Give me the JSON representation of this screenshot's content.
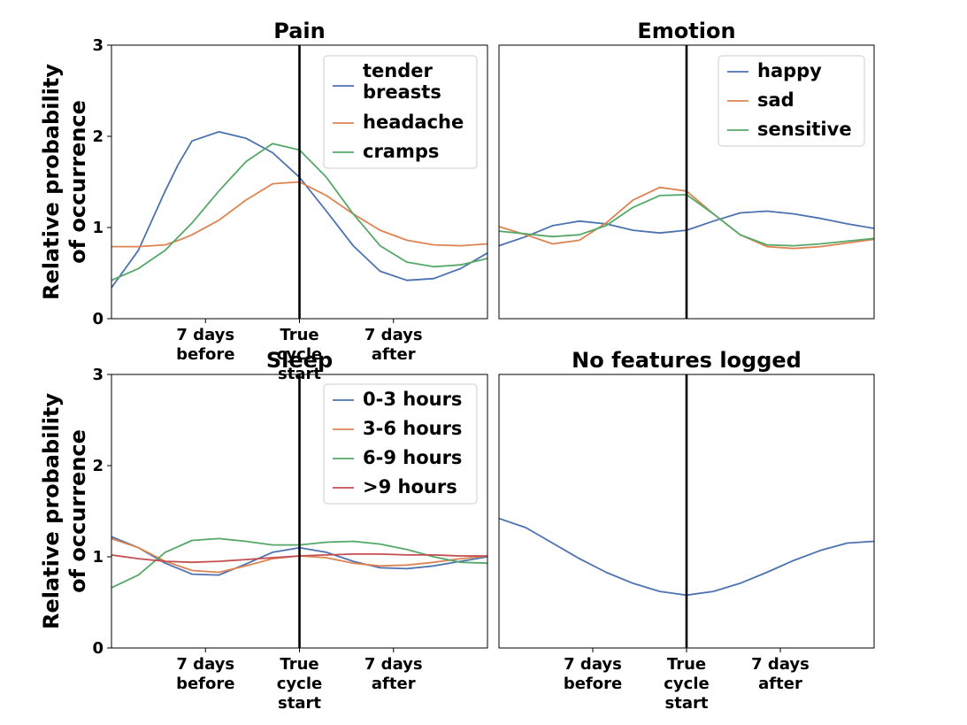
{
  "chart_data": [
    {
      "type": "line",
      "title": "Pain",
      "ylabel": "Relative probability of occurrence",
      "ylim": [
        0,
        3
      ],
      "yticks": [
        0,
        1,
        2,
        3
      ],
      "xlim": [
        -14,
        14
      ],
      "xticks": [
        {
          "x": -7,
          "label": "7 days before"
        },
        {
          "x": 0,
          "label": "True cycle start"
        },
        {
          "x": 7,
          "label": "7 days after"
        }
      ],
      "vline_x": 0,
      "legend": "top-right",
      "x": [
        -14,
        -12,
        -10,
        -9,
        -8,
        -6,
        -4,
        -2,
        0,
        2,
        4,
        6,
        8,
        10,
        12,
        14
      ],
      "series": [
        {
          "name": "tender breasts",
          "color": "#4c72b0",
          "values": [
            0.34,
            0.75,
            1.4,
            1.7,
            1.95,
            2.05,
            1.98,
            1.82,
            1.55,
            1.18,
            0.8,
            0.52,
            0.42,
            0.44,
            0.55,
            0.72
          ]
        },
        {
          "name": "headache",
          "color": "#dd8452",
          "values": [
            0.79,
            0.79,
            0.81,
            0.86,
            0.92,
            1.08,
            1.3,
            1.48,
            1.5,
            1.35,
            1.15,
            0.97,
            0.86,
            0.81,
            0.8,
            0.82
          ]
        },
        {
          "name": "cramps",
          "color": "#55a868",
          "values": [
            0.42,
            0.55,
            0.75,
            0.9,
            1.05,
            1.4,
            1.72,
            1.92,
            1.85,
            1.55,
            1.15,
            0.8,
            0.62,
            0.57,
            0.59,
            0.66
          ]
        }
      ]
    },
    {
      "type": "line",
      "title": "Emotion",
      "ylabel": "",
      "ylim": [
        0,
        3
      ],
      "xlim": [
        -14,
        14
      ],
      "xticks": [],
      "vline_x": 0,
      "legend": "top-right",
      "x": [
        -14,
        -12,
        -10,
        -8,
        -6,
        -4,
        -2,
        0,
        2,
        4,
        6,
        8,
        10,
        12,
        14
      ],
      "series": [
        {
          "name": "happy",
          "color": "#4c72b0",
          "values": [
            0.8,
            0.9,
            1.02,
            1.07,
            1.04,
            0.97,
            0.94,
            0.97,
            1.07,
            1.16,
            1.18,
            1.15,
            1.1,
            1.04,
            0.99
          ]
        },
        {
          "name": "sad",
          "color": "#dd8452",
          "values": [
            1.01,
            0.92,
            0.82,
            0.86,
            1.05,
            1.3,
            1.44,
            1.4,
            1.15,
            0.92,
            0.79,
            0.77,
            0.79,
            0.83,
            0.87
          ]
        },
        {
          "name": "sensitive",
          "color": "#55a868",
          "values": [
            0.96,
            0.93,
            0.9,
            0.92,
            1.02,
            1.22,
            1.35,
            1.36,
            1.15,
            0.92,
            0.81,
            0.8,
            0.82,
            0.85,
            0.88
          ]
        }
      ]
    },
    {
      "type": "line",
      "title": "Sleep",
      "ylabel": "Relative probability of occurrence",
      "ylim": [
        0,
        3
      ],
      "yticks": [
        0,
        1,
        2,
        3
      ],
      "xlim": [
        -14,
        14
      ],
      "xticks": [
        {
          "x": -7,
          "label": "7 days before"
        },
        {
          "x": 0,
          "label": "True cycle start"
        },
        {
          "x": 7,
          "label": "7 days after"
        }
      ],
      "vline_x": 0,
      "legend": "top-right",
      "x": [
        -14,
        -12,
        -10,
        -8,
        -6,
        -4,
        -2,
        0,
        2,
        4,
        6,
        8,
        10,
        12,
        14
      ],
      "series": [
        {
          "name": "0-3 hours",
          "color": "#4c72b0",
          "values": [
            1.22,
            1.1,
            0.93,
            0.81,
            0.8,
            0.92,
            1.05,
            1.1,
            1.05,
            0.95,
            0.88,
            0.87,
            0.9,
            0.95,
            1.0
          ]
        },
        {
          "name": "3-6 hours",
          "color": "#dd8452",
          "values": [
            1.2,
            1.1,
            0.95,
            0.85,
            0.83,
            0.9,
            0.98,
            1.01,
            0.99,
            0.93,
            0.9,
            0.91,
            0.94,
            0.98,
            1.01
          ]
        },
        {
          "name": "6-9 hours",
          "color": "#55a868",
          "values": [
            0.66,
            0.8,
            1.05,
            1.18,
            1.2,
            1.17,
            1.13,
            1.13,
            1.16,
            1.17,
            1.14,
            1.08,
            1.0,
            0.94,
            0.93
          ]
        },
        {
          "name": ">9 hours",
          "color": "#c44e52",
          "values": [
            1.02,
            0.98,
            0.95,
            0.94,
            0.95,
            0.97,
            0.99,
            1.01,
            1.02,
            1.03,
            1.03,
            1.02,
            1.02,
            1.01,
            1.01
          ]
        }
      ]
    },
    {
      "type": "line",
      "title": "No features logged",
      "ylabel": "",
      "ylim": [
        0,
        3
      ],
      "xlim": [
        -14,
        14
      ],
      "xticks": [
        {
          "x": -7,
          "label": "7 days before"
        },
        {
          "x": 0,
          "label": "True cycle start"
        },
        {
          "x": 7,
          "label": "7 days after"
        }
      ],
      "vline_x": 0,
      "legend": "none",
      "x": [
        -14,
        -12,
        -10,
        -8,
        -6,
        -4,
        -2,
        0,
        2,
        4,
        6,
        8,
        10,
        12,
        14
      ],
      "series": [
        {
          "color": "#4c72b0",
          "values": [
            1.42,
            1.32,
            1.15,
            0.98,
            0.83,
            0.71,
            0.62,
            0.58,
            0.62,
            0.71,
            0.83,
            0.96,
            1.07,
            1.15,
            1.17
          ]
        }
      ]
    }
  ]
}
